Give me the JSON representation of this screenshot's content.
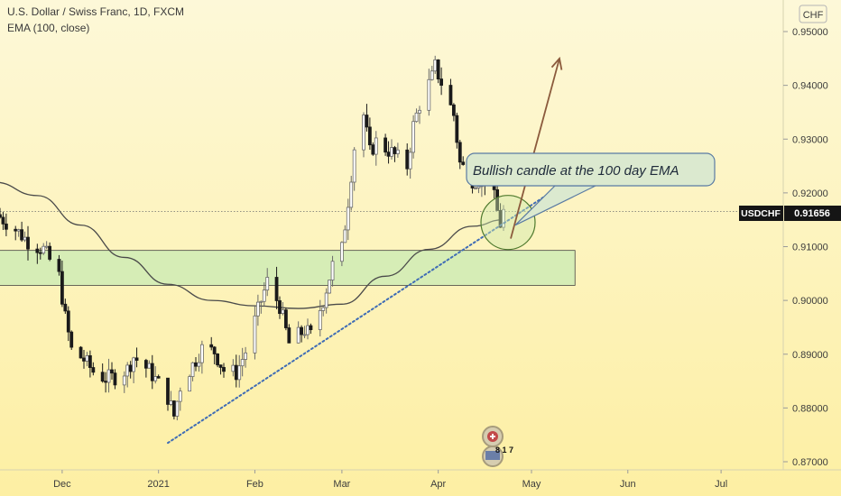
{
  "header": {
    "title": "U.S. Dollar / Swiss Franc, 1D, FXCM",
    "indicator": "EMA (100, close)"
  },
  "axis": {
    "currency": "CHF",
    "symbol": "USDCHF",
    "last_price": "0.91656"
  },
  "annotation": {
    "text": "Bullish candle at the 100 day EMA"
  },
  "icons": {
    "badge_count": "8 1 7"
  },
  "colors": {
    "background_top": "#fdf8d8",
    "background_bottom": "#fdefa3",
    "candle_up": "#6a6a6a",
    "candle_down": "#1a1a1a",
    "ema": "#4a4a4a",
    "zone_fill": "#d4edb6",
    "trendline": "#3f6cb5",
    "arrow": "#8b5a3c"
  },
  "chart_data": {
    "type": "candlestick",
    "title": "U.S. Dollar / Swiss Franc, 1D, FXCM",
    "ylim": [
      0.87,
      0.953
    ],
    "y_ticks": [
      "0.87000",
      "0.88000",
      "0.89000",
      "0.90000",
      "0.91000",
      "0.92000",
      "0.93000",
      "0.94000",
      "0.95000"
    ],
    "x_ticks": [
      "Dec",
      "2021",
      "Feb",
      "Mar",
      "Apr",
      "May",
      "Jun",
      "Jul"
    ],
    "x_range": [
      "2020-11-11",
      "2021-07-21"
    ],
    "close_path": [
      [
        "2020-11-11",
        0.9155
      ],
      [
        "2020-11-16",
        0.9132
      ],
      [
        "2020-11-20",
        0.911
      ],
      [
        "2020-11-25",
        0.9095
      ],
      [
        "2020-11-30",
        0.9045
      ],
      [
        "2020-12-02",
        0.8968
      ],
      [
        "2020-12-04",
        0.8908
      ],
      [
        "2020-12-08",
        0.889
      ],
      [
        "2020-12-11",
        0.8868
      ],
      [
        "2020-12-15",
        0.8855
      ],
      [
        "2020-12-18",
        0.8858
      ],
      [
        "2020-12-22",
        0.8872
      ],
      [
        "2020-12-24",
        0.8895
      ],
      [
        "2020-12-29",
        0.887
      ],
      [
        "2021-01-04",
        0.882
      ],
      [
        "2021-01-06",
        0.8785
      ],
      [
        "2021-01-08",
        0.884
      ],
      [
        "2021-01-12",
        0.888
      ],
      [
        "2021-01-15",
        0.891
      ],
      [
        "2021-01-19",
        0.8905
      ],
      [
        "2021-01-22",
        0.887
      ],
      [
        "2021-01-26",
        0.8865
      ],
      [
        "2021-01-29",
        0.8905
      ],
      [
        "2021-02-03",
        0.9
      ],
      [
        "2021-02-05",
        0.9035
      ],
      [
        "2021-02-09",
        0.899
      ],
      [
        "2021-02-12",
        0.892
      ],
      [
        "2021-02-17",
        0.8945
      ],
      [
        "2021-02-19",
        0.8935
      ],
      [
        "2021-02-23",
        0.9
      ],
      [
        "2021-02-26",
        0.9065
      ],
      [
        "2021-03-01",
        0.9095
      ],
      [
        "2021-03-03",
        0.9185
      ],
      [
        "2021-03-05",
        0.9285
      ],
      [
        "2021-03-08",
        0.9345
      ],
      [
        "2021-03-10",
        0.9275
      ],
      [
        "2021-03-12",
        0.9295
      ],
      [
        "2021-03-17",
        0.9275
      ],
      [
        "2021-03-22",
        0.925
      ],
      [
        "2021-03-24",
        0.9325
      ],
      [
        "2021-03-26",
        0.9365
      ],
      [
        "2021-03-30",
        0.9415
      ],
      [
        "2021-03-31",
        0.9435
      ],
      [
        "2021-04-02",
        0.9405
      ],
      [
        "2021-04-06",
        0.9345
      ],
      [
        "2021-04-08",
        0.9255
      ],
      [
        "2021-04-12",
        0.9225
      ],
      [
        "2021-04-14",
        0.9225
      ],
      [
        "2021-04-16",
        0.9225
      ],
      [
        "2021-04-19",
        0.919
      ],
      [
        "2021-04-20",
        0.9165
      ],
      [
        "2021-04-21",
        0.9142
      ],
      [
        "2021-04-22",
        0.9165
      ]
    ],
    "ema_100": [
      [
        "2020-11-09",
        0.922
      ],
      [
        "2020-11-23",
        0.9195
      ],
      [
        "2020-12-07",
        0.914
      ],
      [
        "2020-12-21",
        0.908
      ],
      [
        "2021-01-04",
        0.903
      ],
      [
        "2021-01-18",
        0.9
      ],
      [
        "2021-02-01",
        0.899
      ],
      [
        "2021-02-15",
        0.8985
      ],
      [
        "2021-03-01",
        0.8993
      ],
      [
        "2021-03-15",
        0.9045
      ],
      [
        "2021-03-29",
        0.9095
      ],
      [
        "2021-04-12",
        0.9138
      ],
      [
        "2021-04-22",
        0.915
      ]
    ],
    "support_zone": {
      "from": "2020-11-09",
      "to": "2021-05-15",
      "low": 0.9028,
      "high": 0.9093
    },
    "trendline": {
      "from": [
        "2021-01-04",
        0.8735
      ],
      "to": [
        "2021-05-07",
        0.92
      ]
    },
    "arrow": {
      "from": [
        "2021-04-22",
        0.9115
      ],
      "to": [
        "2021-05-10",
        0.945
      ]
    },
    "highlight_circle": {
      "date": "2021-04-22",
      "value": 0.9145
    }
  }
}
